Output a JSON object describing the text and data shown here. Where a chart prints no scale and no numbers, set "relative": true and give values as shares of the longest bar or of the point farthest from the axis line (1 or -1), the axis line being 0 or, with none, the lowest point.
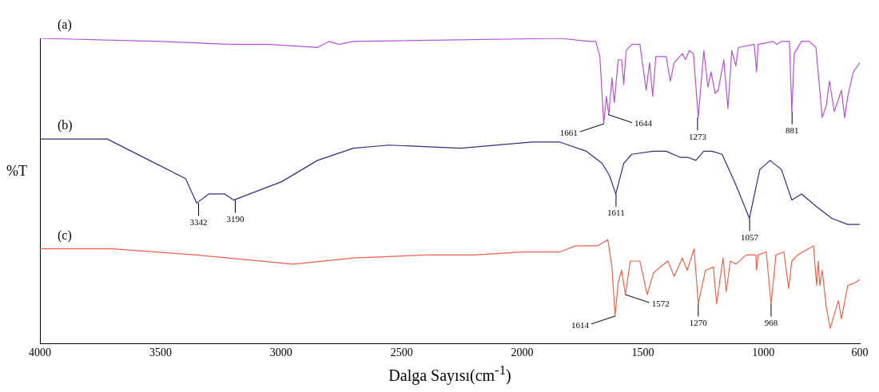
{
  "chart_data": {
    "type": "line",
    "relative": true,
    "xlabel": "Dalga Sayısı(cm$^{-1}$)",
    "ylabel": "%T",
    "xlim": [
      4000,
      600
    ],
    "xticks": [
      4000,
      3500,
      3000,
      2500,
      2000,
      1500,
      1000,
      600
    ],
    "grid": false,
    "legend": false,
    "marker": "none",
    "line_style": "solid",
    "series": [
      {
        "name": "(a)",
        "color": "#b450dc",
        "x": [
          4000,
          3500,
          3204,
          3050,
          2850,
          2800,
          2760,
          2700,
          1844,
          1720,
          1711,
          1695,
          1678,
          1662,
          1651,
          1641,
          1628,
          1618,
          1602,
          1588,
          1579,
          1569,
          1546,
          1512,
          1486,
          1472,
          1459,
          1446,
          1403,
          1386,
          1370,
          1336,
          1323,
          1307,
          1290,
          1270,
          1247,
          1230,
          1217,
          1200,
          1187,
          1164,
          1147,
          1131,
          1114,
          1104,
          1038,
          1028,
          1022,
          959,
          945,
          925,
          892,
          882,
          872,
          842,
          809,
          782,
          756,
          739,
          726,
          706,
          676,
          663,
          650,
          627,
          600
        ],
        "values": [
          1.0,
          0.99,
          0.98,
          0.98,
          0.97,
          0.99,
          0.98,
          0.99,
          1.0,
          0.99,
          0.99,
          0.99,
          0.94,
          0.72,
          0.81,
          0.75,
          0.87,
          0.79,
          0.93,
          0.93,
          0.85,
          0.96,
          0.98,
          0.98,
          0.83,
          0.92,
          0.81,
          0.94,
          0.94,
          0.86,
          0.92,
          0.95,
          0.93,
          0.96,
          0.95,
          0.74,
          0.96,
          0.84,
          0.89,
          0.82,
          0.83,
          0.93,
          0.77,
          0.96,
          0.91,
          0.97,
          0.98,
          0.89,
          0.98,
          0.99,
          0.98,
          0.99,
          0.99,
          0.76,
          0.95,
          0.99,
          0.99,
          0.97,
          0.74,
          0.78,
          0.86,
          0.76,
          0.83,
          0.74,
          0.81,
          0.89,
          0.92
        ]
      },
      {
        "name": "(b)",
        "color": "#2e2e80",
        "x": [
          4000,
          3721,
          3546,
          3396,
          3350,
          3300,
          3234,
          3197,
          2998,
          2849,
          2700,
          2554,
          2255,
          1960,
          1844,
          1734,
          1668,
          1638,
          1612,
          1579,
          1546,
          1456,
          1403,
          1346,
          1313,
          1280,
          1247,
          1214,
          1171,
          1114,
          1058,
          1015,
          972,
          925,
          882,
          842,
          782,
          716,
          650,
          600
        ],
        "values": [
          0.67,
          0.67,
          0.6,
          0.54,
          0.46,
          0.49,
          0.49,
          0.47,
          0.53,
          0.6,
          0.64,
          0.65,
          0.64,
          0.66,
          0.66,
          0.63,
          0.59,
          0.55,
          0.49,
          0.59,
          0.62,
          0.63,
          0.63,
          0.61,
          0.61,
          0.6,
          0.63,
          0.63,
          0.62,
          0.52,
          0.41,
          0.57,
          0.6,
          0.57,
          0.47,
          0.49,
          0.45,
          0.41,
          0.39,
          0.39
        ]
      },
      {
        "name": "(c)",
        "color": "#f0604a",
        "x": [
          4000,
          3700,
          3350,
          2950,
          2700,
          2400,
          2200,
          2000,
          1844,
          1778,
          1688,
          1645,
          1628,
          1615,
          1602,
          1588,
          1572,
          1552,
          1512,
          1482,
          1456,
          1429,
          1396,
          1370,
          1336,
          1316,
          1287,
          1270,
          1240,
          1207,
          1194,
          1167,
          1154,
          1137,
          1114,
          1071,
          1031,
          1028,
          1022,
          988,
          968,
          948,
          915,
          895,
          882,
          858,
          792,
          779,
          772,
          766,
          756,
          739,
          723,
          689,
          676,
          650,
          617,
          600
        ],
        "values": [
          0.31,
          0.31,
          0.29,
          0.26,
          0.28,
          0.29,
          0.29,
          0.3,
          0.3,
          0.32,
          0.32,
          0.34,
          0.25,
          0.09,
          0.2,
          0.24,
          0.16,
          0.27,
          0.27,
          0.16,
          0.23,
          0.25,
          0.27,
          0.22,
          0.28,
          0.24,
          0.31,
          0.13,
          0.24,
          0.25,
          0.13,
          0.28,
          0.17,
          0.27,
          0.26,
          0.29,
          0.29,
          0.24,
          0.29,
          0.3,
          0.13,
          0.29,
          0.3,
          0.18,
          0.27,
          0.29,
          0.32,
          0.19,
          0.27,
          0.19,
          0.24,
          0.12,
          0.05,
          0.14,
          0.08,
          0.19,
          0.2,
          0.21
        ]
      }
    ],
    "annotations": [
      {
        "text": "1661",
        "x": 1661,
        "y": 0.72
      },
      {
        "text": "1644",
        "x": 1644,
        "y": 0.75
      },
      {
        "text": "1273",
        "x": 1273,
        "y": 0.74
      },
      {
        "text": "881",
        "x": 881,
        "y": 0.76
      },
      {
        "text": "3342",
        "x": 3342,
        "y": 0.46
      },
      {
        "text": "3190",
        "x": 3190,
        "y": 0.47
      },
      {
        "text": "1611",
        "x": 1611,
        "y": 0.49
      },
      {
        "text": "1057",
        "x": 1057,
        "y": 0.41
      },
      {
        "text": "1614",
        "x": 1614,
        "y": 0.09
      },
      {
        "text": "1572",
        "x": 1572,
        "y": 0.16
      },
      {
        "text": "1270",
        "x": 1270,
        "y": 0.13
      },
      {
        "text": "968",
        "x": 968,
        "y": 0.13
      }
    ]
  }
}
